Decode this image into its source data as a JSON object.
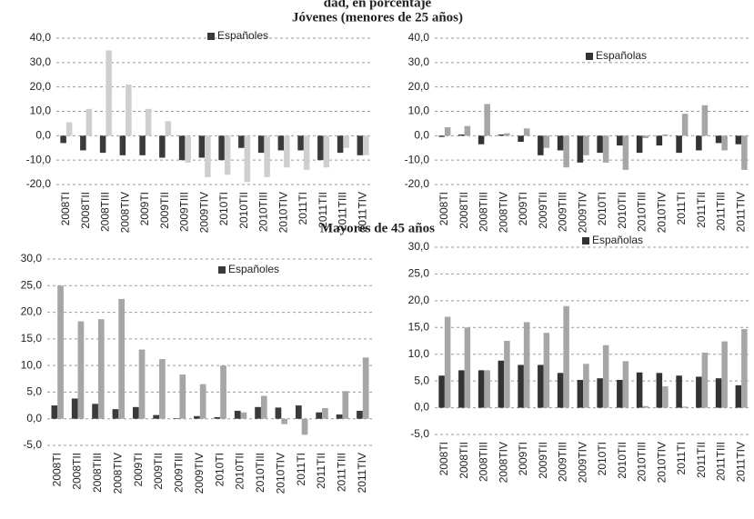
{
  "header_title": "dad, en porcentaje",
  "section_titles": [
    "Jóvenes (menores de 25 años)",
    "Mayores de 45 años"
  ],
  "chart_data": [
    {
      "type": "bar",
      "categories": [
        "2008TI",
        "2008TII",
        "2008TIII",
        "2008TIV",
        "2009TI",
        "2009TII",
        "2009TIII",
        "2009TIV",
        "2010TI",
        "2010TII",
        "2010TIII",
        "2010TIV",
        "2011TI",
        "2011TII",
        "2011TIII",
        "2011TIV"
      ],
      "series": [
        {
          "name": "Españoles",
          "color": "#3a3a3a",
          "values": [
            -3,
            -6,
            -7,
            -8,
            -8,
            -9,
            -10,
            -9,
            -10,
            -5,
            -7,
            -6,
            -6,
            -10,
            -7,
            -8
          ]
        },
        {
          "color": "#cfcfcf",
          "values": [
            5.5,
            11,
            35,
            21,
            11,
            6,
            -11,
            -17,
            -16,
            -19,
            -17,
            -13,
            -14,
            -13,
            -5,
            -8
          ]
        }
      ],
      "ylim": [
        -20,
        40
      ],
      "yticks": [
        {
          "value": -20,
          "label": "-20,0"
        },
        {
          "value": -10,
          "label": "-10,0"
        },
        {
          "value": 0,
          "label": "0,0"
        },
        {
          "value": 10,
          "label": "10,0"
        },
        {
          "value": 20,
          "label": "20,0"
        },
        {
          "value": 30,
          "label": "30,0"
        },
        {
          "value": 40,
          "label": "40,0"
        }
      ],
      "grid": true
    },
    {
      "type": "bar",
      "categories": [
        "2008TI",
        "2008TII",
        "2008TIII",
        "2008TIV",
        "2009TI",
        "2009TII",
        "2009TIII",
        "2009TIV",
        "2010TI",
        "2010TII",
        "2010TIII",
        "2010TIV",
        "2011TI",
        "2011TII",
        "2011TIII",
        "2011TIV"
      ],
      "series": [
        {
          "name": "Españolas",
          "color": "#333333",
          "values": [
            -0.5,
            0.5,
            -3.5,
            0.5,
            -2.5,
            -8,
            -6,
            -11,
            -7,
            -4,
            -7,
            -4,
            -7,
            -6,
            -3,
            -3.5
          ]
        },
        {
          "color": "#a6a6a6",
          "values": [
            3.5,
            4,
            13,
            1,
            3,
            -5,
            -13,
            -8,
            -11,
            -14,
            -1,
            0.5,
            9,
            12.5,
            -6,
            -14
          ]
        }
      ],
      "ylim": [
        -20,
        40
      ],
      "yticks": [
        {
          "value": -20,
          "label": "-20,0"
        },
        {
          "value": -10,
          "label": "-10,0"
        },
        {
          "value": 0,
          "label": "0,0"
        },
        {
          "value": 10,
          "label": "10,0"
        },
        {
          "value": 20,
          "label": "20,0"
        },
        {
          "value": 30,
          "label": "30,0"
        },
        {
          "value": 40,
          "label": "40,0"
        }
      ],
      "grid": true
    },
    {
      "type": "bar",
      "categories": [
        "2008TI",
        "2008TII",
        "2008TIII",
        "2008TIV",
        "2009TI",
        "2009TII",
        "2009TIII",
        "2009TIV",
        "2010TI",
        "2010TII",
        "2010TIII",
        "2010TIV",
        "2011TI",
        "2011TII",
        "2011TIII",
        "2011TIV"
      ],
      "series": [
        {
          "name": "Españoles",
          "color": "#3a3a3a",
          "values": [
            2.5,
            3.8,
            2.8,
            1.8,
            2.2,
            0.7,
            0.1,
            0.5,
            0.3,
            1.5,
            2.2,
            2.1,
            2.5,
            1.2,
            0.8,
            1.5
          ]
        },
        {
          "color": "#a6a6a6",
          "values": [
            25,
            18.3,
            18.7,
            22.5,
            13,
            11.2,
            8.3,
            6.5,
            10,
            1.2,
            4.3,
            -1,
            -3,
            2,
            5.2,
            11.5
          ]
        }
      ],
      "ylim": [
        -5,
        30
      ],
      "yticks": [
        {
          "value": -5,
          "label": "-5,0"
        },
        {
          "value": 0,
          "label": "0,0"
        },
        {
          "value": 5,
          "label": "5,0"
        },
        {
          "value": 10,
          "label": "10,0"
        },
        {
          "value": 15,
          "label": "15,0"
        },
        {
          "value": 20,
          "label": "20,0"
        },
        {
          "value": 25,
          "label": "25,0"
        },
        {
          "value": 30,
          "label": "30,0"
        }
      ],
      "grid": true
    },
    {
      "type": "bar",
      "categories": [
        "2008TI",
        "2008TII",
        "2008TIII",
        "2008TIV",
        "2009TI",
        "2009TII",
        "2009TIII",
        "2009TIV",
        "2010TI",
        "2010TII",
        "2010TIII",
        "2010TIV",
        "2011TI",
        "2011TII",
        "2011TIII",
        "2011TIV"
      ],
      "series": [
        {
          "name": "Españolas",
          "color": "#333333",
          "values": [
            6,
            7,
            7,
            8.8,
            8,
            8,
            6.5,
            5.2,
            5.5,
            5.2,
            6.6,
            6.5,
            6,
            5.8,
            5.5,
            4.2
          ]
        },
        {
          "color": "#a6a6a6",
          "values": [
            17,
            15,
            7,
            12.5,
            16,
            14,
            19,
            8.2,
            11.7,
            8.7,
            0.3,
            4,
            0.2,
            10.3,
            12.4,
            14.7
          ]
        }
      ],
      "ylim": [
        -5,
        30
      ],
      "yticks": [
        {
          "value": -5,
          "label": "-5,0"
        },
        {
          "value": 0,
          "label": "0,0"
        },
        {
          "value": 5,
          "label": "5,0"
        },
        {
          "value": 10,
          "label": "10,0"
        },
        {
          "value": 15,
          "label": "15,0"
        },
        {
          "value": 20,
          "label": "20,0"
        },
        {
          "value": 25,
          "label": "25,0"
        },
        {
          "value": 30,
          "label": "30,0"
        }
      ],
      "grid": true
    }
  ]
}
